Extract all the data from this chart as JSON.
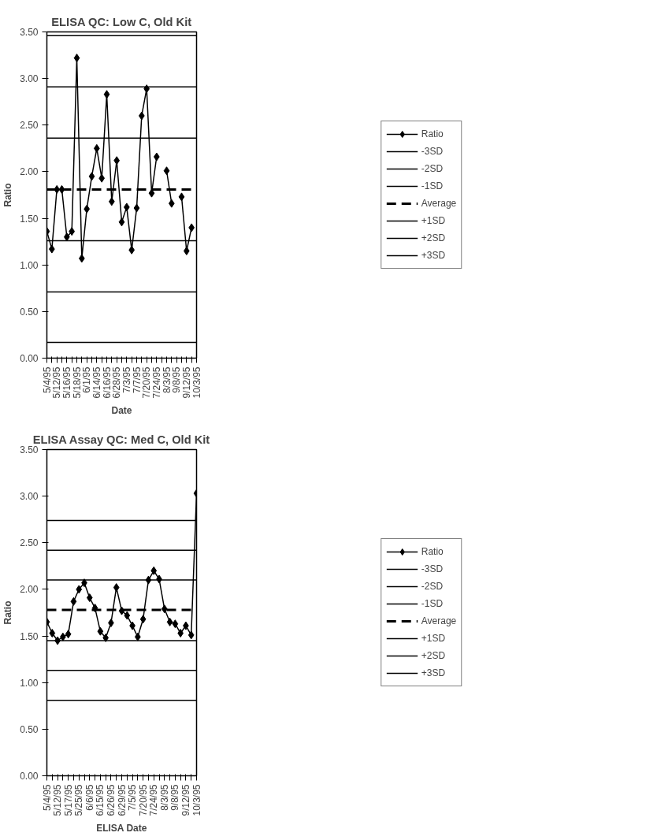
{
  "chart_data": [
    {
      "type": "line",
      "title": "ELISA QC: Low C, Old Kit",
      "xlabel": "Date",
      "ylabel": "Ratio",
      "categories": [
        "5/4/95",
        null,
        "5/12/95",
        null,
        "5/16/95",
        null,
        "5/18/95",
        null,
        "6/1/95",
        null,
        "6/14/95",
        null,
        "6/16/95",
        null,
        "6/28/95",
        null,
        "7/3/95",
        null,
        "7/7/95",
        null,
        "7/20/95",
        null,
        "7/24/95",
        null,
        "8/3/95",
        null,
        "9/8/95",
        null,
        "9/12/95",
        null,
        "10/3/95"
      ],
      "ylim": [
        0,
        3.5
      ],
      "yticks": [
        {
          "value": 0,
          "label": "0.00"
        },
        {
          "value": 0.5,
          "label": "0.50"
        },
        {
          "value": 1,
          "label": "1.00"
        },
        {
          "value": 1.5,
          "label": "1.50"
        },
        {
          "value": 2,
          "label": "2.00"
        },
        {
          "value": 2.5,
          "label": "2.50"
        },
        {
          "value": 3,
          "label": "3.00"
        },
        {
          "value": 3.5,
          "label": "3.50"
        }
      ],
      "grid": false,
      "legend": "right",
      "marker": "none",
      "line_style": "solid",
      "series": [
        {
          "name": "Ratio",
          "color": "#000000",
          "marker": "diamond",
          "values": [
            1.36,
            1.17,
            1.81,
            1.81,
            1.3,
            1.36,
            3.22,
            1.07,
            1.6,
            1.95,
            2.25,
            1.93,
            2.83,
            1.68,
            2.12,
            1.46,
            1.62,
            1.16,
            1.61,
            2.6,
            2.89,
            1.77,
            2.16,
            null,
            2.01,
            1.66,
            null,
            1.73,
            1.15,
            1.4,
            null
          ]
        },
        {
          "name": "-3SD",
          "color": "#000000",
          "values": [
            0.17,
            0.17,
            0.17,
            0.17,
            0.17,
            0.17,
            0.17,
            0.17,
            0.17,
            0.17,
            0.17,
            0.17,
            0.17,
            0.17,
            0.17,
            0.17,
            0.17,
            0.17,
            0.17,
            0.17,
            0.17,
            0.17,
            0.17,
            0.17,
            0.17,
            0.17,
            0.17,
            0.17,
            0.17,
            0.17,
            0.17
          ]
        },
        {
          "name": "-2SD",
          "color": "#000000",
          "values": [
            0.71,
            0.71,
            0.71,
            0.71,
            0.71,
            0.71,
            0.71,
            0.71,
            0.71,
            0.71,
            0.71,
            0.71,
            0.71,
            0.71,
            0.71,
            0.71,
            0.71,
            0.71,
            0.71,
            0.71,
            0.71,
            0.71,
            0.71,
            0.71,
            0.71,
            0.71,
            0.71,
            0.71,
            0.71,
            0.71,
            0.71
          ]
        },
        {
          "name": "-1SD",
          "color": "#000000",
          "values": [
            1.26,
            1.26,
            1.26,
            1.26,
            1.26,
            1.26,
            1.26,
            1.26,
            1.26,
            1.26,
            1.26,
            1.26,
            1.26,
            1.26,
            1.26,
            1.26,
            1.26,
            1.26,
            1.26,
            1.26,
            1.26,
            1.26,
            1.26,
            1.26,
            1.26,
            1.26,
            1.26,
            1.26,
            1.26,
            1.26,
            1.26
          ]
        },
        {
          "name": "Average",
          "color": "#000000",
          "line_style": "dashed",
          "values": [
            1.81,
            1.81,
            1.81,
            1.81,
            1.81,
            1.81,
            1.81,
            1.81,
            1.81,
            1.81,
            1.81,
            1.81,
            1.81,
            1.81,
            1.81,
            1.81,
            1.81,
            1.81,
            1.81,
            1.81,
            1.81,
            1.81,
            1.81,
            1.81,
            1.81,
            1.81,
            1.81,
            1.81,
            1.81,
            1.81,
            1.81
          ]
        },
        {
          "name": "+1SD",
          "color": "#000000",
          "values": [
            2.36,
            2.36,
            2.36,
            2.36,
            2.36,
            2.36,
            2.36,
            2.36,
            2.36,
            2.36,
            2.36,
            2.36,
            2.36,
            2.36,
            2.36,
            2.36,
            2.36,
            2.36,
            2.36,
            2.36,
            2.36,
            2.36,
            2.36,
            2.36,
            2.36,
            2.36,
            2.36,
            2.36,
            2.36,
            2.36,
            2.36
          ]
        },
        {
          "name": "+2SD",
          "color": "#000000",
          "values": [
            2.91,
            2.91,
            2.91,
            2.91,
            2.91,
            2.91,
            2.91,
            2.91,
            2.91,
            2.91,
            2.91,
            2.91,
            2.91,
            2.91,
            2.91,
            2.91,
            2.91,
            2.91,
            2.91,
            2.91,
            2.91,
            2.91,
            2.91,
            2.91,
            2.91,
            2.91,
            2.91,
            2.91,
            2.91,
            2.91,
            2.91
          ]
        },
        {
          "name": "+3SD",
          "color": "#000000",
          "values": [
            3.46,
            3.46,
            3.46,
            3.46,
            3.46,
            3.46,
            3.46,
            3.46,
            3.46,
            3.46,
            3.46,
            3.46,
            3.46,
            3.46,
            3.46,
            3.46,
            3.46,
            3.46,
            3.46,
            3.46,
            3.46,
            3.46,
            3.46,
            3.46,
            3.46,
            3.46,
            3.46,
            3.46,
            3.46,
            3.46,
            3.46
          ]
        }
      ]
    },
    {
      "type": "line",
      "title": "ELISA Assay QC: Med C, Old Kit",
      "xlabel": "ELISA Date",
      "ylabel": "Ratio",
      "categories": [
        "5/4/95",
        null,
        "5/12/95",
        null,
        "5/17/95",
        null,
        "5/25/95",
        null,
        "6/6/95",
        null,
        "6/15/95",
        null,
        "6/26/95",
        null,
        "6/29/95",
        null,
        "7/5/95",
        null,
        "7/20/95",
        null,
        "7/24/95",
        null,
        "8/3/95",
        null,
        "9/8/95",
        null,
        "9/12/95",
        null,
        "10/3/95"
      ],
      "ylim": [
        0,
        3.5
      ],
      "yticks": [
        {
          "value": 0,
          "label": "0.00"
        },
        {
          "value": 0.5,
          "label": "0.50"
        },
        {
          "value": 1,
          "label": "1.00"
        },
        {
          "value": 1.5,
          "label": "1.50"
        },
        {
          "value": 2,
          "label": "2.00"
        },
        {
          "value": 2.5,
          "label": "2.50"
        },
        {
          "value": 3,
          "label": "3.00"
        },
        {
          "value": 3.5,
          "label": "3.50"
        }
      ],
      "grid": false,
      "legend": "right",
      "marker": "none",
      "line_style": "solid",
      "series": [
        {
          "name": "Ratio",
          "color": "#000000",
          "marker": "diamond",
          "values": [
            1.65,
            1.53,
            1.45,
            1.49,
            1.52,
            1.87,
            2.0,
            2.07,
            1.91,
            1.8,
            1.55,
            1.48,
            1.64,
            2.02,
            1.77,
            1.72,
            1.61,
            1.49,
            1.68,
            2.1,
            2.2,
            2.11,
            1.79,
            1.65,
            1.63,
            1.53,
            1.61,
            1.51,
            3.03
          ]
        },
        {
          "name": "-3SD",
          "color": "#000000",
          "values": [
            0.81,
            0.81,
            0.81,
            0.81,
            0.81,
            0.81,
            0.81,
            0.81,
            0.81,
            0.81,
            0.81,
            0.81,
            0.81,
            0.81,
            0.81,
            0.81,
            0.81,
            0.81,
            0.81,
            0.81,
            0.81,
            0.81,
            0.81,
            0.81,
            0.81,
            0.81,
            0.81,
            0.81,
            0.81
          ]
        },
        {
          "name": "-2SD",
          "color": "#000000",
          "values": [
            1.13,
            1.13,
            1.13,
            1.13,
            1.13,
            1.13,
            1.13,
            1.13,
            1.13,
            1.13,
            1.13,
            1.13,
            1.13,
            1.13,
            1.13,
            1.13,
            1.13,
            1.13,
            1.13,
            1.13,
            1.13,
            1.13,
            1.13,
            1.13,
            1.13,
            1.13,
            1.13,
            1.13,
            1.13
          ]
        },
        {
          "name": "-1SD",
          "color": "#000000",
          "values": [
            1.45,
            1.45,
            1.45,
            1.45,
            1.45,
            1.45,
            1.45,
            1.45,
            1.45,
            1.45,
            1.45,
            1.45,
            1.45,
            1.45,
            1.45,
            1.45,
            1.45,
            1.45,
            1.45,
            1.45,
            1.45,
            1.45,
            1.45,
            1.45,
            1.45,
            1.45,
            1.45,
            1.45,
            1.45
          ]
        },
        {
          "name": "Average",
          "color": "#000000",
          "line_style": "dashed",
          "values": [
            1.78,
            1.78,
            1.78,
            1.78,
            1.78,
            1.78,
            1.78,
            1.78,
            1.78,
            1.78,
            1.78,
            1.78,
            1.78,
            1.78,
            1.78,
            1.78,
            1.78,
            1.78,
            1.78,
            1.78,
            1.78,
            1.78,
            1.78,
            1.78,
            1.78,
            1.78,
            1.78,
            1.78,
            1.78
          ]
        },
        {
          "name": "+1SD",
          "color": "#000000",
          "values": [
            2.1,
            2.1,
            2.1,
            2.1,
            2.1,
            2.1,
            2.1,
            2.1,
            2.1,
            2.1,
            2.1,
            2.1,
            2.1,
            2.1,
            2.1,
            2.1,
            2.1,
            2.1,
            2.1,
            2.1,
            2.1,
            2.1,
            2.1,
            2.1,
            2.1,
            2.1,
            2.1,
            2.1,
            2.1
          ]
        },
        {
          "name": "+2SD",
          "color": "#000000",
          "values": [
            2.42,
            2.42,
            2.42,
            2.42,
            2.42,
            2.42,
            2.42,
            2.42,
            2.42,
            2.42,
            2.42,
            2.42,
            2.42,
            2.42,
            2.42,
            2.42,
            2.42,
            2.42,
            2.42,
            2.42,
            2.42,
            2.42,
            2.42,
            2.42,
            2.42,
            2.42,
            2.42,
            2.42,
            2.42
          ]
        },
        {
          "name": "+3SD",
          "color": "#000000",
          "values": [
            2.74,
            2.74,
            2.74,
            2.74,
            2.74,
            2.74,
            2.74,
            2.74,
            2.74,
            2.74,
            2.74,
            2.74,
            2.74,
            2.74,
            2.74,
            2.74,
            2.74,
            2.74,
            2.74,
            2.74,
            2.74,
            2.74,
            2.74,
            2.74,
            2.74,
            2.74,
            2.74,
            2.74,
            2.74
          ]
        }
      ]
    }
  ]
}
